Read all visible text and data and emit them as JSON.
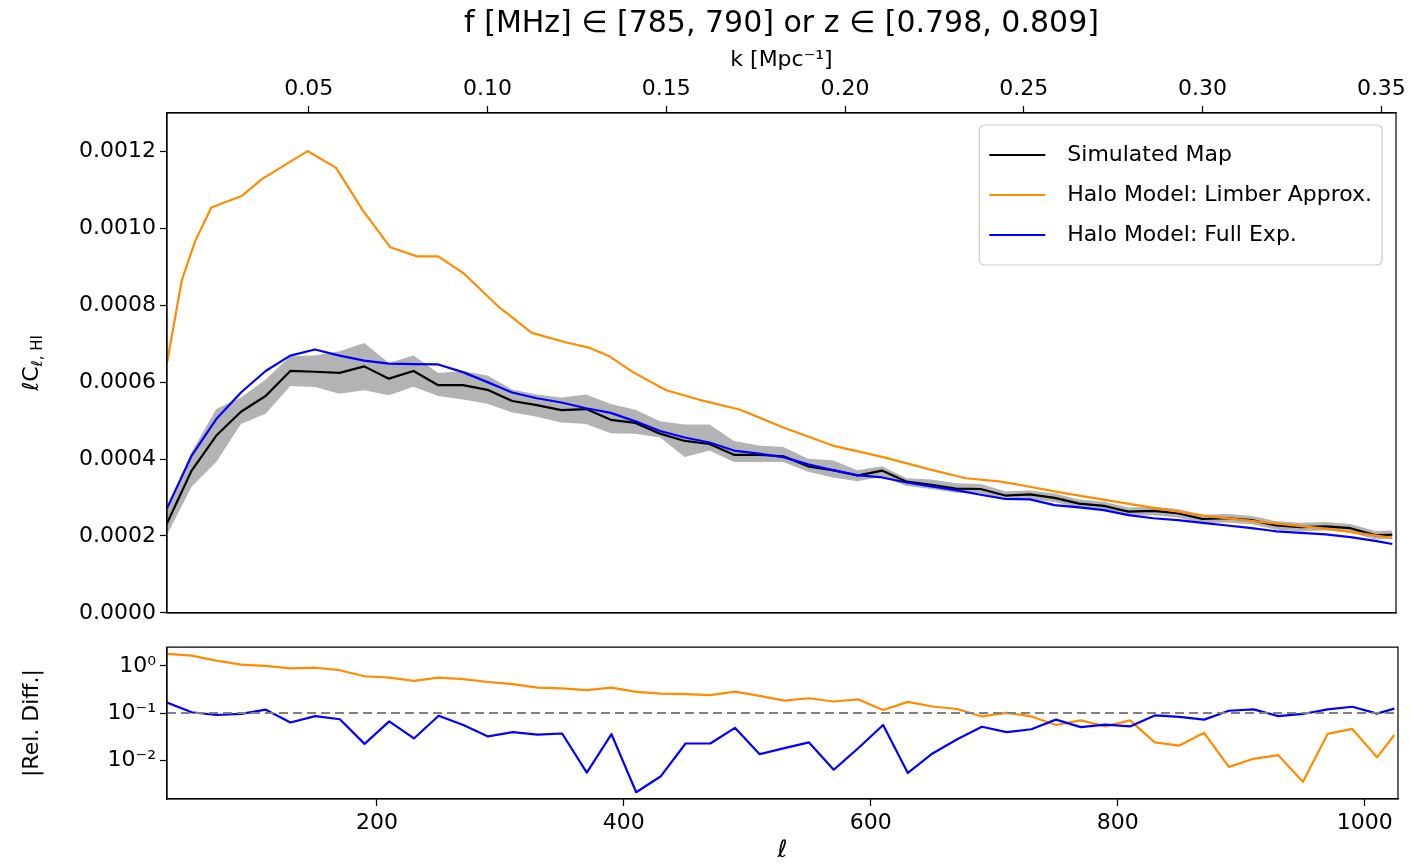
{
  "chart_data": [
    {
      "type": "line",
      "title": "f [MHz] ∈ [785, 790] or z ∈ [0.798, 0.809]",
      "ylabel": "ℓC$_{ℓ, HI}$",
      "x2label": "k [Mpc⁻¹]",
      "x": [
        30,
        50,
        70,
        90,
        110,
        130,
        150,
        170,
        190,
        210,
        230,
        250,
        270,
        290,
        310,
        330,
        350,
        370,
        390,
        410,
        430,
        450,
        470,
        490,
        510,
        530,
        550,
        570,
        590,
        610,
        630,
        650,
        670,
        690,
        710,
        730,
        750,
        770,
        790,
        810,
        830,
        850,
        870,
        890,
        910,
        930,
        950,
        970,
        990,
        1010,
        1024
      ],
      "series": [
        {
          "name": "Simulated Map",
          "color": "#000000",
          "values": [
            0.000233,
            0.00037,
            0.000461,
            0.000523,
            0.000564,
            0.000629,
            0.000627,
            0.000624,
            0.000641,
            0.000609,
            0.000629,
            0.000592,
            0.000592,
            0.00058,
            0.000551,
            0.00054,
            0.000527,
            0.00053,
            0.000502,
            0.000494,
            0.000466,
            0.000447,
            0.000439,
            0.000411,
            0.000411,
            0.000407,
            0.000381,
            0.000371,
            0.000357,
            0.00037,
            0.000341,
            0.000333,
            0.000323,
            0.000322,
            0.000305,
            0.000308,
            0.000299,
            0.000284,
            0.000278,
            0.000263,
            0.000265,
            0.000259,
            0.000244,
            0.000246,
            0.000241,
            0.000227,
            0.000223,
            0.000225,
            0.00022,
            0.000202,
            0.000203
          ],
          "upper": [
            0.000267,
            0.000418,
            0.00053,
            0.00056,
            0.000607,
            0.000667,
            0.000669,
            0.00068,
            0.000702,
            0.00065,
            0.000669,
            0.000624,
            0.000629,
            0.000617,
            0.000581,
            0.000568,
            0.00056,
            0.000568,
            0.000543,
            0.000528,
            0.000498,
            0.00049,
            0.00049,
            0.000447,
            0.000435,
            0.000431,
            0.000401,
            0.000397,
            0.000371,
            0.000381,
            0.00035,
            0.000347,
            0.000337,
            0.000335,
            0.000316,
            0.000318,
            0.00031,
            0.000295,
            0.000289,
            0.000274,
            0.000276,
            0.00027,
            0.000255,
            0.000257,
            0.000252,
            0.000238,
            0.000234,
            0.000236,
            0.000231,
            0.000213,
            0.000214
          ],
          "lower": [
            0.000203,
            0.000328,
            0.000392,
            0.000491,
            0.000518,
            0.00059,
            0.000587,
            0.00057,
            0.000579,
            0.000566,
            0.000588,
            0.000564,
            0.000555,
            0.000544,
            0.000521,
            0.00051,
            0.000495,
            0.000491,
            0.000467,
            0.000466,
            0.000456,
            0.000405,
            0.000422,
            0.000392,
            0.000392,
            0.000392,
            0.000367,
            0.000352,
            0.000342,
            0.000354,
            0.00033,
            0.000322,
            0.000312,
            0.00031,
            0.000295,
            0.000296,
            0.000288,
            0.000273,
            0.000267,
            0.000252,
            0.000254,
            0.000248,
            0.000233,
            0.000235,
            0.00023,
            0.000216,
            0.000212,
            0.000214,
            0.000209,
            0.000191,
            0.000192
          ]
        },
        {
          "name": "Halo Model: Limber Approx.",
          "color": "#ff8c00",
          "x": [
            30,
            42,
            53,
            66,
            91,
            107,
            144,
            167,
            189,
            211,
            233,
            250,
            271,
            299,
            326,
            354,
            373,
            389,
            408,
            435,
            462,
            495,
            530,
            570,
            611,
            651,
            678,
            705,
            721,
            760,
            813,
            872,
            921,
            975,
            1024
          ],
          "values": [
            0.00065,
            0.000865,
            0.000968,
            0.001054,
            0.001085,
            0.001128,
            0.001201,
            0.001158,
            0.001046,
            0.000951,
            0.000927,
            0.000927,
            0.000882,
            0.000796,
            0.000728,
            0.000703,
            0.000689,
            0.000667,
            0.000626,
            0.000579,
            0.000554,
            0.000528,
            0.000482,
            0.000435,
            0.000405,
            0.000371,
            0.00035,
            0.000342,
            0.000333,
            0.00031,
            0.000282,
            0.000252,
            0.000235,
            0.000217,
            0.000195
          ]
        },
        {
          "name": "Halo Model: Full Exp.",
          "color": "#0000ff",
          "values": [
            0.000272,
            0.000409,
            0.000504,
            0.000573,
            0.000629,
            0.000669,
            0.000685,
            0.000669,
            0.000656,
            0.000648,
            0.000647,
            0.000646,
            0.000626,
            0.0006,
            0.000573,
            0.000558,
            0.000547,
            0.000532,
            0.00052,
            0.000498,
            0.000473,
            0.000456,
            0.000443,
            0.000422,
            0.000414,
            0.000405,
            0.000386,
            0.000371,
            0.000358,
            0.000352,
            0.000339,
            0.000329,
            0.000319,
            0.000307,
            0.000296,
            0.000295,
            0.00028,
            0.000274,
            0.000267,
            0.000254,
            0.000246,
            0.000241,
            0.000234,
            0.000227,
            0.00022,
            0.000212,
            0.000208,
            0.000204,
            0.000197,
            0.000187,
            0.000179
          ]
        }
      ],
      "xlim": [
        30,
        1027
      ],
      "ylim": [
        0,
        0.0013
      ],
      "yticks": [
        {
          "value": 0,
          "label": "0.0000"
        },
        {
          "value": 0.0002,
          "label": "0.0002"
        },
        {
          "value": 0.0004,
          "label": "0.0004"
        },
        {
          "value": 0.0006,
          "label": "0.0006"
        },
        {
          "value": 0.0008,
          "label": "0.0008"
        },
        {
          "value": 0.001,
          "label": "0.0010"
        },
        {
          "value": 0.0012,
          "label": "0.0012"
        }
      ],
      "x2lim": [
        0.01034,
        0.3541
      ],
      "x2ticks": [
        0.05,
        {
          "value": 0.1,
          "label": "0.10"
        },
        0.15,
        {
          "value": 0.2,
          "label": "0.20"
        },
        0.25,
        {
          "value": 0.3,
          "label": "0.30"
        },
        0.35
      ],
      "tick_labels": "y",
      "legend": "top right"
    },
    {
      "type": "line",
      "xlabel": "ℓ",
      "ylabel": "|Rel. Diff.|",
      "log": "y",
      "x": [
        30,
        50,
        70,
        90,
        110,
        130,
        150,
        170,
        190,
        210,
        230,
        250,
        270,
        290,
        310,
        330,
        350,
        370,
        390,
        410,
        430,
        450,
        470,
        490,
        510,
        530,
        550,
        570,
        590,
        610,
        630,
        650,
        670,
        690,
        710,
        730,
        750,
        770,
        790,
        810,
        830,
        850,
        870,
        890,
        910,
        930,
        950,
        970,
        990,
        1010,
        1024
      ],
      "series": [
        {
          "color": "#ff8c00",
          "values": [
            1.81,
            1.65,
            1.3,
            1.07,
            1.0,
            0.886,
            0.917,
            0.812,
            0.604,
            0.564,
            0.482,
            0.564,
            0.526,
            0.457,
            0.412,
            0.346,
            0.335,
            0.307,
            0.346,
            0.281,
            0.258,
            0.253,
            0.24,
            0.286,
            0.232,
            0.184,
            0.206,
            0.176,
            0.195,
            0.116,
            0.173,
            0.138,
            0.122,
            0.0848,
            0.101,
            0.0848,
            0.0559,
            0.07,
            0.0521,
            0.07,
            0.0238,
            0.0204,
            0.0381,
            0.0072,
            0.0107,
            0.0128,
            0.00347,
            0.0361,
            0.0461,
            0.0115,
            0.0343
          ]
        },
        {
          "color": "#0000ff",
          "values": [
            0.167,
            0.104,
            0.091,
            0.096,
            0.118,
            0.063,
            0.086,
            0.074,
            0.0222,
            0.0665,
            0.0289,
            0.0878,
            0.0559,
            0.032,
            0.0394,
            0.0349,
            0.0368,
            0.00545,
            0.0356,
            0.00209,
            0.00457,
            0.0226,
            0.0226,
            0.0486,
            0.0134,
            0.018,
            0.0238,
            0.00625,
            0.0181,
            0.0559,
            0.00535,
            0.0139,
            0.0279,
            0.0512,
            0.0394,
            0.0454,
            0.0725,
            0.0503,
            0.0569,
            0.0521,
            0.0893,
            0.0833,
            0.0725,
            0.112,
            0.12,
            0.0862,
            0.0957,
            0.12,
            0.136,
            0.0975,
            0.124
          ]
        }
      ],
      "ref_lines": [
        {
          "axis": "y",
          "value": 0.1,
          "color": "#808080",
          "line_style": "dashed"
        }
      ],
      "xlim": [
        30,
        1027
      ],
      "xticks": [
        200,
        400,
        600,
        800,
        1000
      ],
      "ylim": [
        0.0015,
        2.5
      ],
      "yticks": [
        {
          "value": 0.01,
          "label": "10⁻²"
        },
        {
          "value": 0.1,
          "label": "10⁻¹"
        },
        {
          "value": 1,
          "label": "10⁰"
        }
      ]
    }
  ]
}
